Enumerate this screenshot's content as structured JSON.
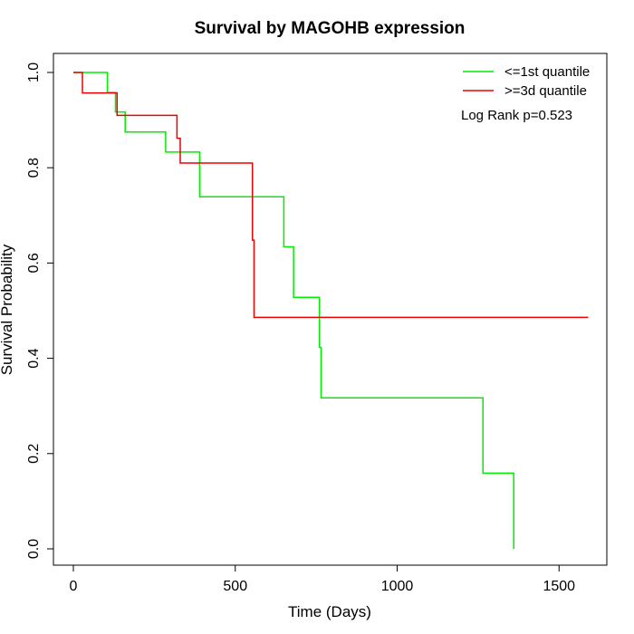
{
  "chart_data": {
    "type": "line",
    "title": "Survival by MAGOHB expression",
    "xlabel": "Time (Days)",
    "ylabel": "Survival Probability",
    "xlim": [
      0,
      1650
    ],
    "ylim": [
      0,
      1.0
    ],
    "x_ticks": [
      0,
      500,
      1000,
      1500
    ],
    "y_ticks": [
      0.0,
      0.2,
      0.4,
      0.6,
      0.8,
      1.0
    ],
    "x_tick_labels": [
      "0",
      "500",
      "1000",
      "1500"
    ],
    "y_tick_labels": [
      "0.0",
      "0.2",
      "0.4",
      "0.6",
      "0.8",
      "1.0"
    ],
    "grid": false,
    "legend_position": "top-right",
    "annotation": "Log Rank p=0.523",
    "series": [
      {
        "name": "<=1st quantile",
        "color": "#00ee00",
        "step": true,
        "x": [
          0,
          105,
          130,
          160,
          285,
          390,
          650,
          680,
          760,
          765,
          1265,
          1360,
          1360
        ],
        "y": [
          1.0,
          0.958,
          0.917,
          0.875,
          0.833,
          0.739,
          0.634,
          0.528,
          0.423,
          0.317,
          0.159,
          0.159,
          0.0
        ]
      },
      {
        "name": ">=3d quantile",
        "color": "#ee0000",
        "step": true,
        "x": [
          0,
          28,
          135,
          320,
          330,
          553,
          558,
          1590
        ],
        "y": [
          1.0,
          0.957,
          0.91,
          0.862,
          0.81,
          0.648,
          0.486,
          0.486
        ]
      }
    ]
  }
}
